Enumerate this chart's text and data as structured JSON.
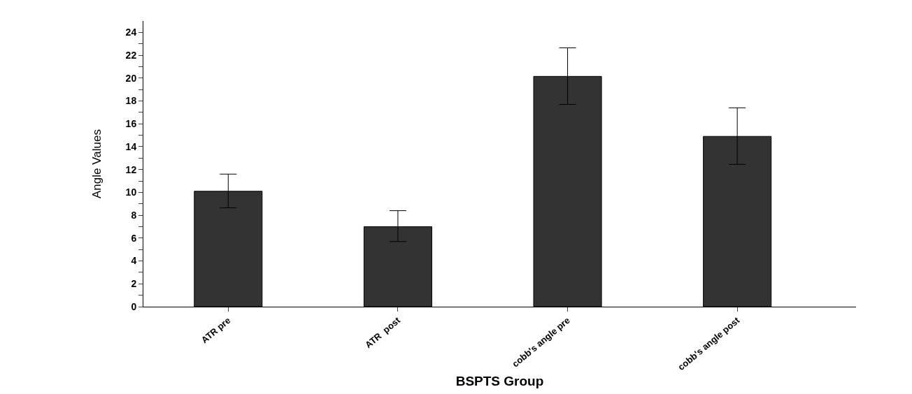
{
  "chart_data": {
    "type": "bar",
    "xlabel": "BSPTS Group",
    "ylabel": "Angle Values",
    "categories": [
      "ATR pre",
      "ATR  post",
      "cobb's angle pre",
      "cobb's angle post"
    ],
    "values": [
      10.1,
      7.0,
      20.15,
      14.9
    ],
    "errors": [
      [
        8.65,
        11.6
      ],
      [
        5.7,
        8.4
      ],
      [
        17.7,
        22.65
      ],
      [
        12.45,
        17.4
      ]
    ],
    "color": "#333333",
    "ylim": [
      0,
      25
    ],
    "yticks": [
      0,
      {
        "value": 1,
        "label": null
      },
      2,
      {
        "value": 3,
        "label": null
      },
      4,
      {
        "value": 5,
        "label": null
      },
      6,
      {
        "value": 7,
        "label": null
      },
      8,
      {
        "value": 9,
        "label": null
      },
      10,
      {
        "value": 11,
        "label": null
      },
      12,
      {
        "value": 13,
        "label": null
      },
      14,
      {
        "value": 15,
        "label": null
      },
      16,
      {
        "value": 17,
        "label": null
      },
      18,
      {
        "value": 19,
        "label": null
      },
      20,
      {
        "value": 21,
        "label": null
      },
      22,
      {
        "value": 23,
        "label": null
      },
      24
    ],
    "legend": false
  }
}
